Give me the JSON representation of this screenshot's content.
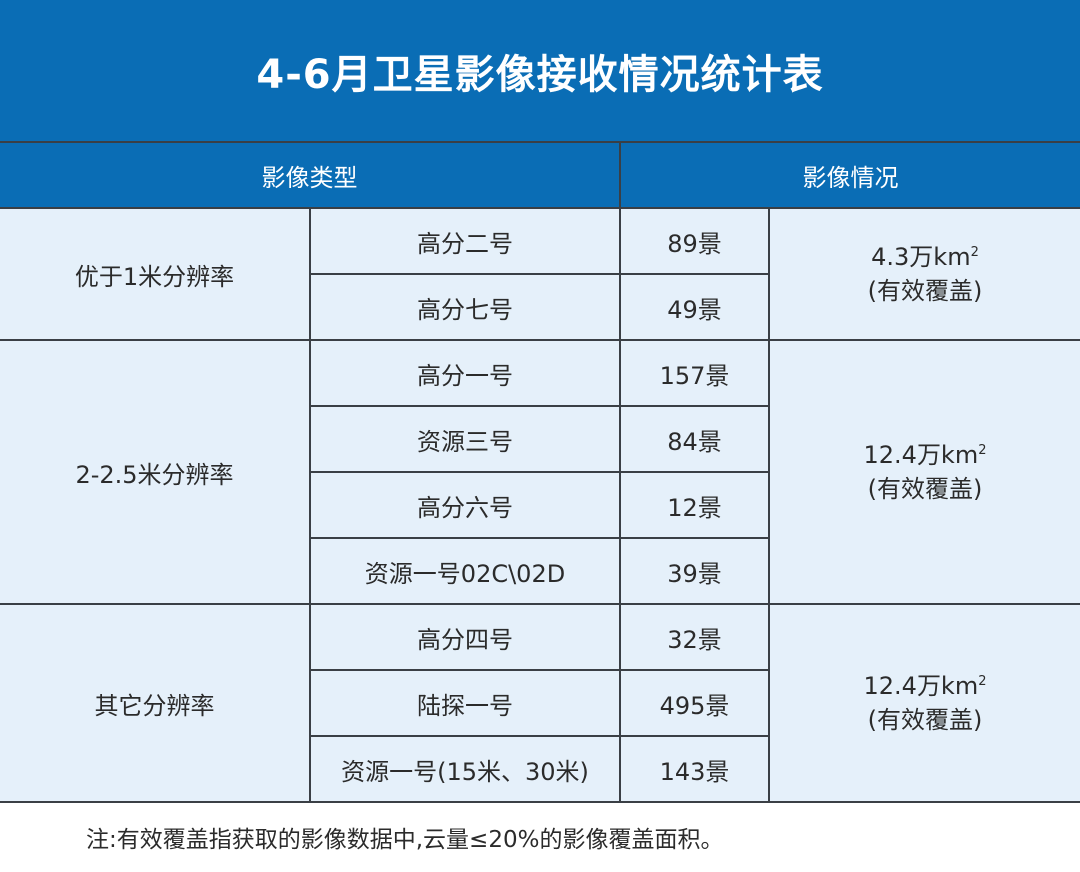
{
  "title": "4-6月卫星影像接收情况统计表",
  "header": {
    "type": "影像类型",
    "status": "影像情况"
  },
  "groups": [
    {
      "resolution": "优于1米分辨率",
      "area": "4.3万km",
      "area_sup": "2",
      "area_note": "(有效覆盖)",
      "rows": [
        {
          "satellite": "高分二号",
          "count": "89景"
        },
        {
          "satellite": "高分七号",
          "count": "49景"
        }
      ]
    },
    {
      "resolution": "2-2.5米分辨率",
      "area": "12.4万km",
      "area_sup": "2",
      "area_note": "(有效覆盖)",
      "rows": [
        {
          "satellite": "高分一号",
          "count": "157景"
        },
        {
          "satellite": "资源三号",
          "count": "84景"
        },
        {
          "satellite": "高分六号",
          "count": "12景"
        },
        {
          "satellite": "资源一号02C\\02D",
          "count": "39景"
        }
      ]
    },
    {
      "resolution": "其它分辨率",
      "area": "12.4万km",
      "area_sup": "2",
      "area_note": "(有效覆盖)",
      "rows": [
        {
          "satellite": "高分四号",
          "count": "32景"
        },
        {
          "satellite": "陆探一号",
          "count": "495景"
        },
        {
          "satellite": "资源一号(15米、30米)",
          "count": "143景"
        }
      ]
    }
  ],
  "note": "注:有效覆盖指获取的影像数据中,云量≤20%的影像覆盖面积。",
  "colors": {
    "header_bg": "#0a6db5",
    "cell_bg": "#e5f0fa",
    "border": "#3a3f45"
  }
}
